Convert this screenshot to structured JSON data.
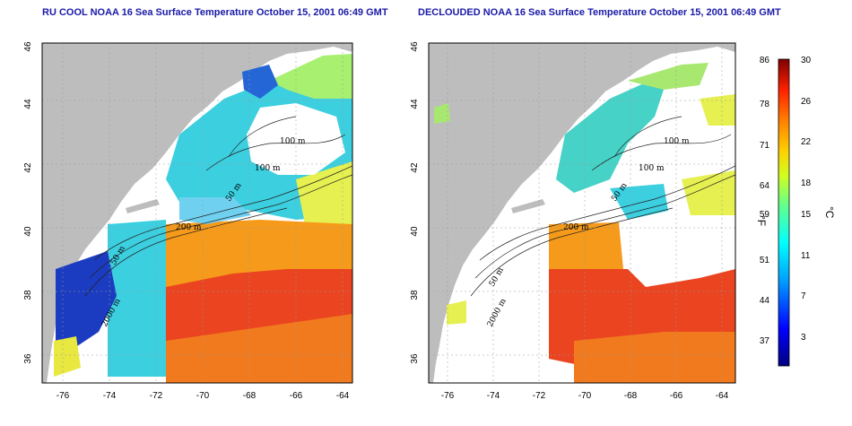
{
  "titles": {
    "left": "RU COOL NOAA 16 Sea Surface Temperature October 15, 2001 06:49 GMT",
    "right": "DECLOUDED NOAA 16 Sea Surface Temperature October 15, 2001 06:49 GMT"
  },
  "axes": {
    "lon_ticks": [
      "-76",
      "-74",
      "-72",
      "-70",
      "-68",
      "-66",
      "-64"
    ],
    "lat_ticks": [
      "46",
      "44",
      "42",
      "40",
      "38",
      "36"
    ]
  },
  "bathymetry_labels": [
    "100 m",
    "100 m",
    "50 m",
    "200 m",
    "50 m",
    "2000 m"
  ],
  "colorbar": {
    "fahrenheit_unit": "°F",
    "celsius_unit": "°C",
    "fahrenheit_ticks": [
      "86",
      "78",
      "71",
      "64",
      "59",
      "51",
      "44",
      "37"
    ],
    "celsius_ticks": [
      "30",
      "26",
      "22",
      "18",
      "15",
      "11",
      "7",
      "3"
    ]
  },
  "colors": {
    "land": "#bdbdbd",
    "title": "#1a1aa8",
    "sst_warm": "#e8301a",
    "sst_mid": "#f7a21a",
    "sst_cool": "#3ce0cf",
    "sst_cold": "#1230c8"
  }
}
